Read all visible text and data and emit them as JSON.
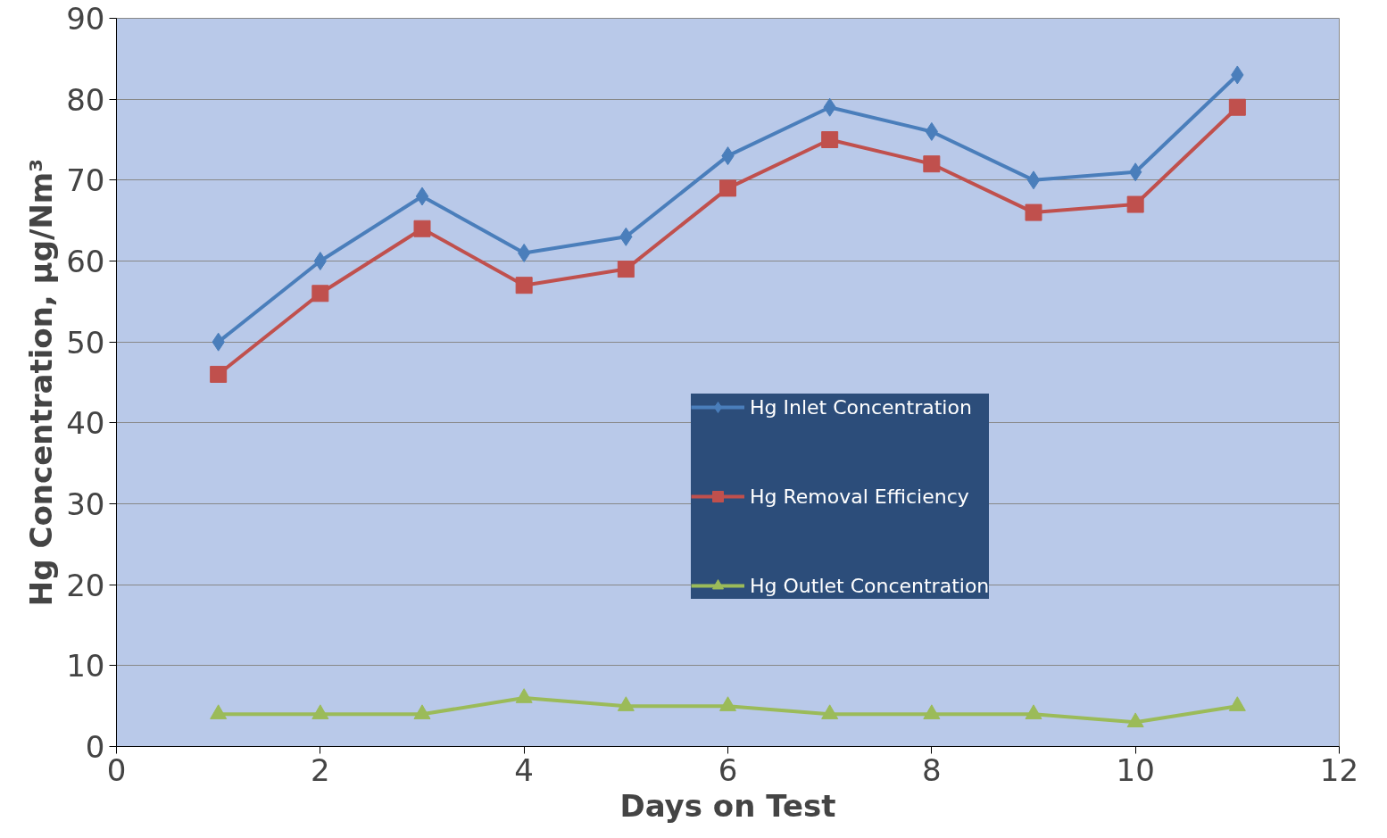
{
  "chart_data": {
    "type": "line",
    "xlabel": "Days on Test",
    "ylabel": "Hg Concentration, µg/Nm³",
    "x": [
      1,
      2,
      3,
      4,
      5,
      6,
      7,
      8,
      9,
      10,
      11
    ],
    "series": [
      {
        "name": "Hg Inlet Concentration",
        "color": "#4a7ebb",
        "marker": "diamond",
        "values": [
          50,
          60,
          68,
          61,
          63,
          73,
          79,
          76,
          70,
          71,
          83
        ]
      },
      {
        "name": "Hg Removal Efficiency",
        "color": "#c0504d",
        "marker": "square",
        "values": [
          46,
          56,
          64,
          57,
          59,
          69,
          75,
          72,
          66,
          67,
          79
        ]
      },
      {
        "name": "Hg Outlet Concentration",
        "color": "#9bbb59",
        "marker": "triangle",
        "values": [
          4,
          4,
          4,
          6,
          5,
          5,
          4,
          4,
          4,
          3,
          5
        ]
      }
    ],
    "xlim": [
      0,
      12
    ],
    "xticks": [
      0,
      2,
      4,
      6,
      8,
      10,
      12
    ],
    "ylim": [
      0,
      90
    ],
    "yticks": [
      0,
      10,
      20,
      30,
      40,
      50,
      60,
      70,
      80,
      90
    ],
    "grid": "y",
    "legend": "right",
    "line_style": "solid"
  }
}
